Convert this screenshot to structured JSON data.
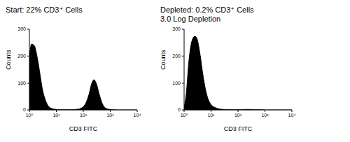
{
  "chart_data": [
    {
      "type": "area",
      "title": "Start: 22% CD3⁺ Cells",
      "x_label": "CD3 FITC",
      "y_label": "Counts",
      "x": [
        1,
        1.2,
        1.5,
        2,
        2.5,
        3,
        4,
        5,
        7,
        10,
        15,
        20,
        30,
        50,
        70,
        100,
        130,
        170,
        200,
        250,
        300,
        400,
        500,
        700,
        1000,
        2000,
        5000,
        10000
      ],
      "values": [
        200,
        245,
        240,
        190,
        130,
        80,
        35,
        15,
        5,
        2,
        1,
        1,
        1,
        2,
        4,
        12,
        30,
        65,
        95,
        112,
        100,
        55,
        25,
        6,
        2,
        0,
        0,
        0
      ],
      "color": "#000000",
      "log": "x",
      "xlim": [
        1,
        10000
      ],
      "xticks": [
        {
          "value": 1,
          "label": "10⁰"
        },
        {
          "value": 10,
          "label": "10¹"
        },
        {
          "value": 100,
          "label": "10²"
        },
        {
          "value": 1000,
          "label": "10³"
        },
        {
          "value": 10000,
          "label": "10⁴"
        }
      ],
      "ylim": [
        0,
        300
      ],
      "yticks": [
        0,
        100,
        200,
        300
      ]
    },
    {
      "type": "area",
      "title": "Depleted: 0.2% CD3⁺ Cells",
      "subtitle": "3.0 Log Depletion",
      "x_label": "CD3 FITC",
      "y_label": "Counts",
      "x": [
        1,
        1.2,
        1.5,
        2,
        2.5,
        3,
        4,
        5,
        7,
        10,
        15,
        20,
        30,
        50,
        70,
        100,
        130,
        170,
        200,
        250,
        300,
        400,
        500,
        700,
        1000,
        2000,
        5000,
        10000
      ],
      "values": [
        10,
        60,
        180,
        260,
        274,
        265,
        200,
        130,
        55,
        20,
        8,
        4,
        2,
        1,
        1,
        1,
        1,
        2,
        2,
        2,
        2,
        1,
        1,
        1,
        0,
        0,
        0,
        0
      ],
      "color": "#000000",
      "log": "x",
      "xlim": [
        1,
        10000
      ],
      "xticks": [
        {
          "value": 1,
          "label": "10⁰"
        },
        {
          "value": 10,
          "label": "10¹"
        },
        {
          "value": 100,
          "label": "10²"
        },
        {
          "value": 1000,
          "label": "10³"
        },
        {
          "value": 10000,
          "label": "10⁴"
        }
      ],
      "ylim": [
        0,
        300
      ],
      "yticks": [
        0,
        100,
        200,
        300
      ]
    }
  ]
}
